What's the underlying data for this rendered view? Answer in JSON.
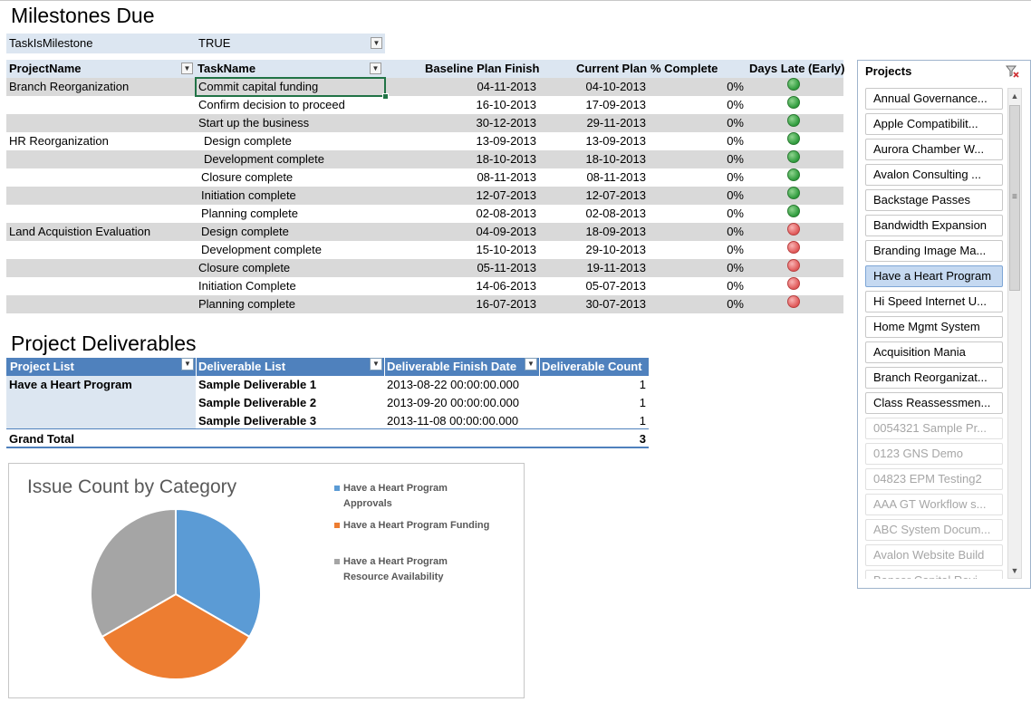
{
  "milestones": {
    "title": "Milestones Due",
    "filter": {
      "field": "TaskIsMilestone",
      "value": "TRUE"
    },
    "headers": {
      "project": "ProjectName",
      "task": "TaskName",
      "baseline": "Baseline Plan Finish",
      "current": "Current Plan",
      "complete": "% Complete",
      "late": "Days Late (Early)"
    },
    "rows": [
      {
        "project": "Branch Reorganization",
        "task": "Commit capital funding",
        "baseline": "04-11-2013",
        "current": "04-10-2013",
        "complete": "0%",
        "status": "green"
      },
      {
        "project": "",
        "task": "Confirm decision to proceed",
        "baseline": "16-10-2013",
        "current": "17-09-2013",
        "complete": "0%",
        "status": "green"
      },
      {
        "project": "",
        "task": "Start up the business",
        "baseline": "30-12-2013",
        "current": "29-11-2013",
        "complete": "0%",
        "status": "green"
      },
      {
        "project": "HR Reorganization",
        "task": "Design complete",
        "baseline": "13-09-2013",
        "current": "13-09-2013",
        "complete": "0%",
        "status": "green"
      },
      {
        "project": "",
        "task": "Development complete",
        "baseline": "18-10-2013",
        "current": "18-10-2013",
        "complete": "0%",
        "status": "green"
      },
      {
        "project": "",
        "task": "Closure complete",
        "baseline": "08-11-2013",
        "current": "08-11-2013",
        "complete": "0%",
        "status": "green"
      },
      {
        "project": "",
        "task": "Initiation complete",
        "baseline": "12-07-2013",
        "current": "12-07-2013",
        "complete": "0%",
        "status": "green"
      },
      {
        "project": "",
        "task": "Planning complete",
        "baseline": "02-08-2013",
        "current": "02-08-2013",
        "complete": "0%",
        "status": "green"
      },
      {
        "project": "Land Acquistion Evaluation",
        "task": "Design complete",
        "baseline": "04-09-2013",
        "current": "18-09-2013",
        "complete": "0%",
        "status": "red"
      },
      {
        "project": "",
        "task": "Development complete",
        "baseline": "15-10-2013",
        "current": "29-10-2013",
        "complete": "0%",
        "status": "red"
      },
      {
        "project": "",
        "task": "Closure complete",
        "baseline": "05-11-2013",
        "current": "19-11-2013",
        "complete": "0%",
        "status": "red"
      },
      {
        "project": "",
        "task": "Initiation Complete",
        "baseline": "14-06-2013",
        "current": "05-07-2013",
        "complete": "0%",
        "status": "red"
      },
      {
        "project": "",
        "task": "Planning complete",
        "baseline": "16-07-2013",
        "current": "30-07-2013",
        "complete": "0%",
        "status": "red"
      }
    ]
  },
  "deliverables": {
    "title": "Project Deliverables",
    "headers": {
      "project": "Project List",
      "deliverable": "Deliverable List",
      "finish": "Deliverable Finish Date",
      "count": "Deliverable Count"
    },
    "project": "Have a Heart Program",
    "rows": [
      {
        "name": "Sample Deliverable 1",
        "finish": "2013-08-22 00:00:00.000",
        "count": "1"
      },
      {
        "name": "Sample Deliverable 2",
        "finish": "2013-09-20 00:00:00.000",
        "count": "1"
      },
      {
        "name": "Sample Deliverable 3",
        "finish": "2013-11-08 00:00:00.000",
        "count": "1"
      }
    ],
    "grand_total_label": "Grand Total",
    "grand_total": "3"
  },
  "chart_data": {
    "type": "pie",
    "title": "Issue Count by Category",
    "categories": [
      "Have a Heart Program Approvals",
      "Have a Heart Program Funding",
      "Have a Heart Program Resource Availability"
    ],
    "legend_lines": [
      [
        "Have a Heart Program",
        "Approvals"
      ],
      [
        "Have a Heart Program Funding"
      ],
      [
        "Have a Heart Program",
        "Resource Availability"
      ]
    ],
    "values": [
      1,
      1,
      1
    ],
    "colors": [
      "#5b9bd5",
      "#ed7d31",
      "#a5a5a5"
    ],
    "legend_position": "right"
  },
  "slicer": {
    "title": "Projects",
    "items": [
      {
        "label": "Annual Governance...",
        "state": "normal"
      },
      {
        "label": "Apple Compatibilit...",
        "state": "normal"
      },
      {
        "label": "Aurora Chamber W...",
        "state": "normal"
      },
      {
        "label": "Avalon Consulting ...",
        "state": "normal"
      },
      {
        "label": "Backstage Passes",
        "state": "normal"
      },
      {
        "label": "Bandwidth Expansion",
        "state": "normal"
      },
      {
        "label": "Branding Image Ma...",
        "state": "normal"
      },
      {
        "label": "Have a Heart Program",
        "state": "selected"
      },
      {
        "label": "Hi Speed Internet U...",
        "state": "normal"
      },
      {
        "label": "Home Mgmt System",
        "state": "normal"
      },
      {
        "label": "Acquisition Mania",
        "state": "normal"
      },
      {
        "label": "Branch Reorganizat...",
        "state": "normal"
      },
      {
        "label": "Class Reassessmen...",
        "state": "normal"
      },
      {
        "label": "0054321 Sample Pr...",
        "state": "nodata"
      },
      {
        "label": "0123 GNS Demo",
        "state": "nodata"
      },
      {
        "label": "04823 EPM Testing2",
        "state": "nodata"
      },
      {
        "label": "AAA GT Workflow s...",
        "state": "nodata"
      },
      {
        "label": "ABC System Docum...",
        "state": "nodata"
      },
      {
        "label": "Avalon Website Build",
        "state": "nodata"
      },
      {
        "label": "Bancor Capital Revi...",
        "state": "nodata"
      }
    ]
  }
}
